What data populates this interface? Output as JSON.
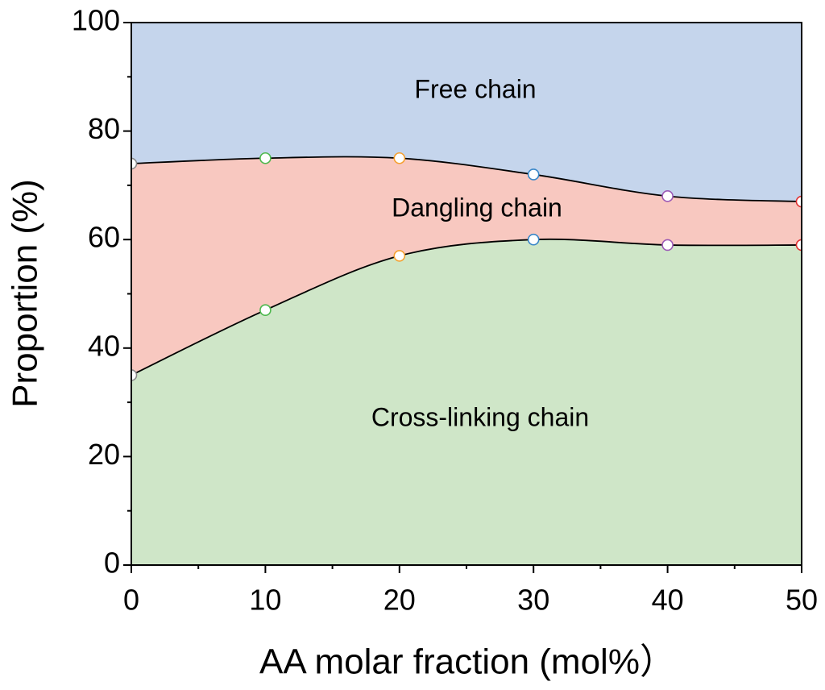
{
  "chart_data": {
    "type": "stacked_area",
    "x_label": "AA molar fraction (mol%）",
    "y_label": "Proportion (%)",
    "x": [
      0,
      10,
      20,
      30,
      40,
      50
    ],
    "series": [
      {
        "name": "Cross-linking chain",
        "color": "#cfe6c8",
        "values": [
          35,
          47,
          57,
          60,
          59,
          59
        ]
      },
      {
        "name": "Dangling chain",
        "color": "#f8c8c0",
        "values": [
          39,
          28,
          18,
          12,
          9,
          8
        ]
      },
      {
        "name": "Free chain",
        "color": "#c5d5ec",
        "values": [
          26,
          25,
          25,
          28,
          32,
          33
        ]
      }
    ],
    "marker_colors": [
      "#8a8a8a",
      "#4db84d",
      "#f5a030",
      "#3a87c8",
      "#9b59b6",
      "#e03030"
    ],
    "xlim": [
      0,
      50
    ],
    "xticks": [
      0,
      10,
      20,
      30,
      40,
      50
    ],
    "ylim": [
      0,
      100
    ],
    "yticks": [
      0,
      20,
      40,
      60,
      80,
      100
    ]
  }
}
